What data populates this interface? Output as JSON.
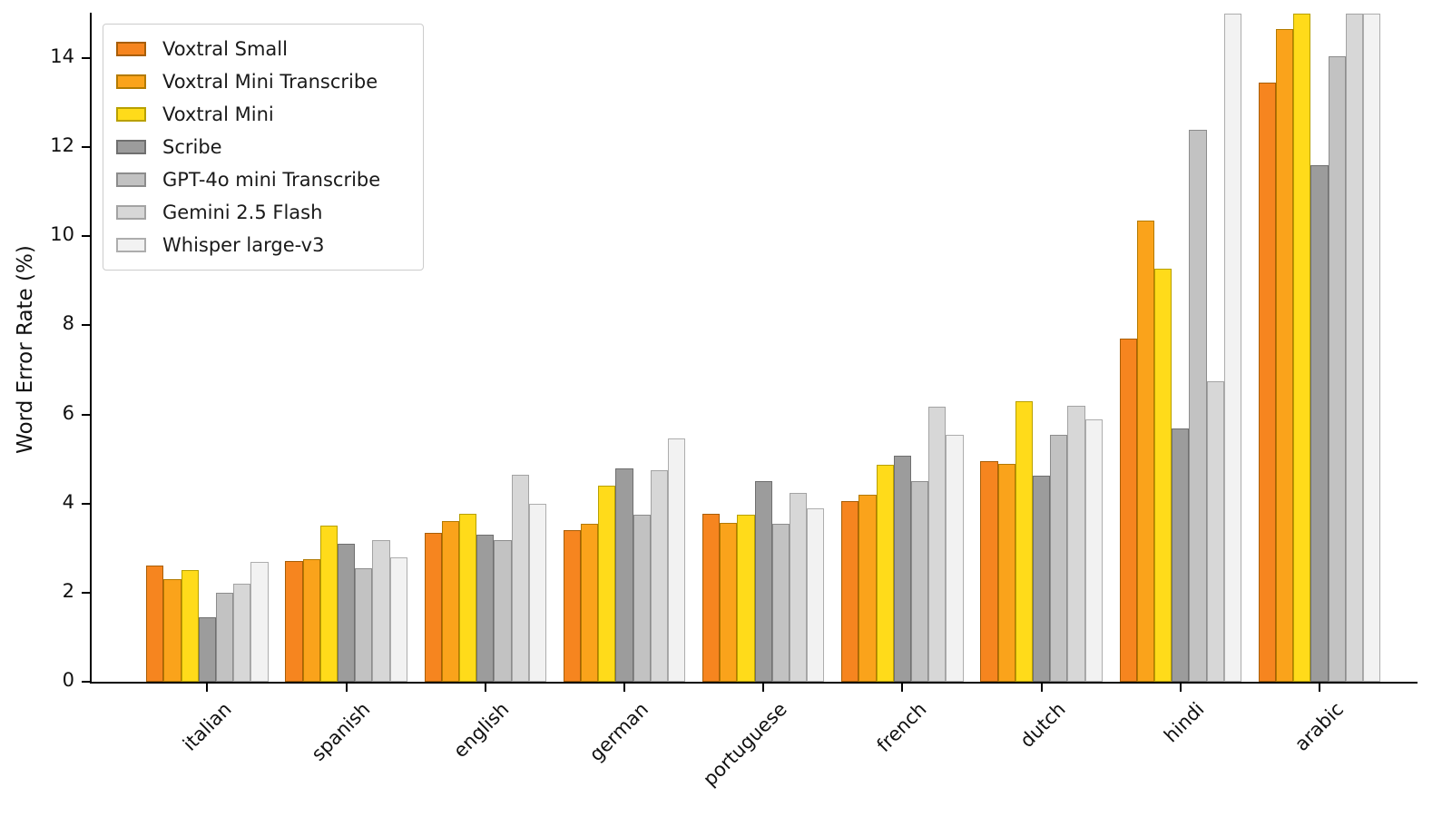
{
  "figure": {
    "background": "#FFFFFF",
    "axis_color": "#000000"
  },
  "chart_data": {
    "type": "bar",
    "title": "",
    "xlabel": "",
    "ylabel": "Word Error Rate (%)",
    "ylim": [
      0,
      15
    ],
    "yticks": [
      0,
      2,
      4,
      6,
      8,
      10,
      12,
      14
    ],
    "grid": false,
    "legend_position": "upper-left",
    "categories": [
      "italian",
      "spanish",
      "english",
      "german",
      "portuguese",
      "french",
      "dutch",
      "hindi",
      "arabic"
    ],
    "series": [
      {
        "name": "Voxtral Small",
        "fill": "#F6851F",
        "edge": "#A85E07",
        "values": [
          2.6,
          2.72,
          3.35,
          3.4,
          3.78,
          4.05,
          4.95,
          7.7,
          13.45
        ]
      },
      {
        "name": "Voxtral Mini Transcribe",
        "fill": "#FAA31B",
        "edge": "#B37A00",
        "values": [
          2.3,
          2.76,
          3.6,
          3.55,
          3.56,
          4.2,
          4.9,
          10.35,
          14.65
        ]
      },
      {
        "name": "Voxtral Mini",
        "fill": "#FFDB1A",
        "edge": "#B8A000",
        "values": [
          2.5,
          3.5,
          3.78,
          4.4,
          3.75,
          4.87,
          6.3,
          9.27,
          15.0
        ]
      },
      {
        "name": "Scribe",
        "fill": "#9C9C9C",
        "edge": "#6F6F6F",
        "values": [
          1.45,
          3.1,
          3.3,
          4.78,
          4.5,
          5.08,
          4.63,
          5.68,
          11.6
        ]
      },
      {
        "name": "GPT-4o mini Transcribe",
        "fill": "#C2C2C2",
        "edge": "#8C8C8C",
        "values": [
          2.0,
          2.55,
          3.18,
          3.76,
          3.55,
          4.5,
          5.55,
          12.4,
          14.05
        ]
      },
      {
        "name": "Gemini 2.5 Flash",
        "fill": "#D7D7D7",
        "edge": "#A3A3A3",
        "values": [
          2.2,
          3.18,
          4.65,
          4.74,
          4.24,
          6.17,
          6.2,
          6.75,
          15.0
        ]
      },
      {
        "name": "Whisper large-v3",
        "fill": "#F2F2F2",
        "edge": "#ADADAD",
        "values": [
          2.7,
          2.8,
          4.0,
          5.47,
          3.9,
          5.55,
          5.88,
          15.0,
          15.0
        ]
      }
    ],
    "clipped_at_ymax": {
      "Voxtral Mini": [
        "arabic"
      ],
      "Gemini 2.5 Flash": [
        "arabic"
      ],
      "Whisper large-v3": [
        "hindi",
        "arabic"
      ]
    },
    "note": "Bars recorded as 15.0 reach the top of the y-axis and are clipped at ylim."
  }
}
